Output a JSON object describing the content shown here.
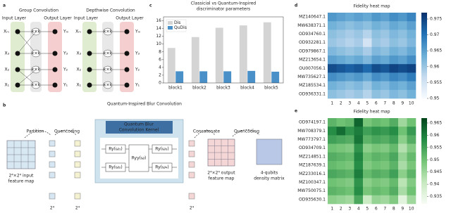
{
  "panel_labels": [
    "a",
    "b",
    "c",
    "d",
    "e"
  ],
  "diagram_a": {
    "titles": [
      "Group Convolution",
      "Depthwise Convolution"
    ],
    "input_label": "Input Layer",
    "output_label": "Output Layer",
    "inputs": [
      "Xₘ",
      "X₃",
      "X₂",
      "X₁"
    ],
    "outputs": [
      "Yₘ",
      "Y₃",
      "Y₂",
      "Y₁"
    ],
    "kernel": "k×k"
  },
  "diagram_b": {
    "title": "Quantum-Inspired  Blur Convolution",
    "partition": "Partition",
    "quencoding": "Quencoding",
    "input_map": [
      "2⁴×2⁴ input",
      "feature map"
    ],
    "kernel_title": [
      "Quantum Blur",
      "Convolution Kernel"
    ],
    "gates_left": [
      "Ry(ω₁)",
      "Ry(ω₂)"
    ],
    "gates_right": [
      "Ry(ω₃)",
      "Ry(ω₄)"
    ],
    "gate_middle": "Ryy(ω)",
    "concatenate": "Concatenate",
    "output_map": [
      "2⁴×2⁴ output",
      "feature map"
    ],
    "density": [
      "4-qubits",
      "density matrix"
    ],
    "count": "2⁴"
  },
  "chart_data": [
    {
      "type": "bar",
      "title": [
        "Classicial vs Quantum-Inspired",
        "discriminator parameters"
      ],
      "categories": [
        "block1",
        "block2",
        "block3",
        "block4",
        "block5"
      ],
      "series": [
        {
          "name": "Dis",
          "color": "#d4d4d4",
          "values": [
            9,
            11.8,
            14.2,
            14.8,
            15.6
          ]
        },
        {
          "name": "QuDis",
          "color": "#4a90c8",
          "values": [
            3,
            3,
            3,
            3.1,
            2.9
          ]
        }
      ],
      "ylim": [
        0,
        17
      ],
      "yticks": [
        0,
        2,
        4,
        6,
        8,
        10,
        12,
        14,
        16
      ],
      "legend": "upper left"
    },
    {
      "type": "heatmap",
      "title": "Fidelity heat map",
      "cmap": "Blues",
      "rows": [
        "MZ140647.1",
        "MW638371.1",
        "OD934760.1",
        "OD932281.1",
        "OD979867.1",
        "MZ213654.1",
        "OU007056.1",
        "MW735627.1",
        "MZ185534.1",
        "OD936331.1"
      ],
      "columns": [
        1,
        2,
        3,
        4,
        5,
        6,
        7,
        8,
        9,
        10
      ],
      "values": [
        [
          0.966,
          0.965,
          0.964,
          0.965,
          0.964,
          0.966,
          0.965,
          0.967,
          0.966,
          0.968
        ],
        [
          0.963,
          0.962,
          0.961,
          0.962,
          0.961,
          0.963,
          0.962,
          0.964,
          0.963,
          0.965
        ],
        [
          0.961,
          0.96,
          0.959,
          0.96,
          0.958,
          0.961,
          0.96,
          0.962,
          0.961,
          0.963
        ],
        [
          0.96,
          0.959,
          0.958,
          0.959,
          0.955,
          0.96,
          0.959,
          0.961,
          0.96,
          0.962
        ],
        [
          0.962,
          0.961,
          0.96,
          0.961,
          0.959,
          0.962,
          0.961,
          0.963,
          0.962,
          0.964
        ],
        [
          0.965,
          0.964,
          0.963,
          0.964,
          0.962,
          0.965,
          0.964,
          0.966,
          0.965,
          0.967
        ],
        [
          0.974,
          0.973,
          0.972,
          0.973,
          0.971,
          0.974,
          0.973,
          0.975,
          0.974,
          0.975
        ],
        [
          0.967,
          0.966,
          0.965,
          0.966,
          0.964,
          0.967,
          0.966,
          0.968,
          0.967,
          0.969
        ],
        [
          0.963,
          0.962,
          0.961,
          0.962,
          0.96,
          0.963,
          0.962,
          0.964,
          0.963,
          0.965
        ],
        [
          0.961,
          0.96,
          0.959,
          0.96,
          0.958,
          0.961,
          0.96,
          0.962,
          0.961,
          0.963
        ]
      ],
      "clim": [
        0.95,
        0.977
      ],
      "cticks": [
        0.95,
        0.955,
        0.96,
        0.965,
        0.97,
        0.975
      ]
    },
    {
      "type": "heatmap",
      "title": "Fidelity heat map",
      "cmap": "Greens",
      "rows": [
        "OD974197.1",
        "MW708379.1",
        "MW773797.1",
        "OD934709.1",
        "MZ214851.1",
        "MZ187639.1",
        "MZ233016.1",
        "MZ100347.1",
        "MW750075.1",
        "OD935630.1"
      ],
      "columns": [
        1,
        2,
        3,
        4,
        5,
        6,
        7,
        8,
        9,
        10
      ],
      "values": [
        [
          0.952,
          0.95,
          0.951,
          0.963,
          0.949,
          0.951,
          0.95,
          0.953,
          0.945,
          0.95
        ],
        [
          0.958,
          0.962,
          0.957,
          0.96,
          0.955,
          0.957,
          0.956,
          0.958,
          0.95,
          0.956
        ],
        [
          0.955,
          0.954,
          0.953,
          0.961,
          0.952,
          0.954,
          0.953,
          0.955,
          0.947,
          0.953
        ],
        [
          0.95,
          0.949,
          0.948,
          0.957,
          0.947,
          0.949,
          0.948,
          0.951,
          0.943,
          0.948
        ],
        [
          0.953,
          0.952,
          0.951,
          0.959,
          0.95,
          0.952,
          0.951,
          0.954,
          0.946,
          0.951
        ],
        [
          0.951,
          0.95,
          0.949,
          0.958,
          0.948,
          0.95,
          0.949,
          0.952,
          0.944,
          0.949
        ],
        [
          0.954,
          0.953,
          0.952,
          0.96,
          0.951,
          0.953,
          0.952,
          0.955,
          0.947,
          0.952
        ],
        [
          0.95,
          0.949,
          0.948,
          0.957,
          0.947,
          0.949,
          0.948,
          0.951,
          0.942,
          0.948
        ],
        [
          0.952,
          0.951,
          0.95,
          0.958,
          0.949,
          0.951,
          0.95,
          0.953,
          0.944,
          0.95
        ],
        [
          0.947,
          0.946,
          0.945,
          0.954,
          0.94,
          0.946,
          0.945,
          0.948,
          0.936,
          0.945
        ]
      ],
      "clim": [
        0.932,
        0.967
      ],
      "cticks": [
        0.935,
        0.94,
        0.945,
        0.95,
        0.955,
        0.96,
        0.965
      ]
    }
  ]
}
